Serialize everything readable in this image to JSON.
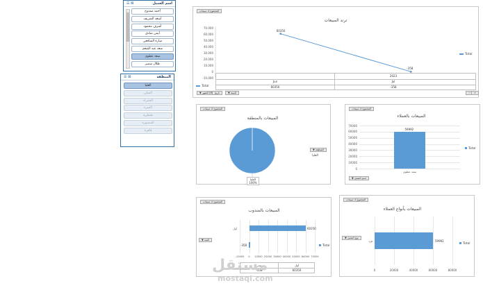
{
  "customer_slicer": {
    "title": "اسم العميل",
    "items": [
      {
        "label": "أحمد ممدوح",
        "selected": false
      },
      {
        "label": "أسعد الشريف",
        "selected": false
      },
      {
        "label": "أشرف محمود",
        "selected": false
      },
      {
        "label": "أيمن صادق",
        "selected": false
      },
      {
        "label": "سارة الشافعي",
        "selected": false
      },
      {
        "label": "سعد عبد المنعم",
        "selected": false
      },
      {
        "label": "سعد عطوى",
        "selected": true
      },
      {
        "label": "طلال سمير",
        "selected": false
      }
    ]
  },
  "region_slicer": {
    "title": "المنطقة",
    "items": [
      {
        "label": "العليا",
        "selected": true
      },
      {
        "label": "السلي",
        "selected": false
      },
      {
        "label": "الحمراء",
        "selected": false
      },
      {
        "label": "الجيزه",
        "selected": false
      },
      {
        "label": "طنطرية",
        "selected": false
      },
      {
        "label": "المنصورة",
        "selected": false
      },
      {
        "label": "قاهرة",
        "selected": false
      }
    ]
  },
  "charts": {
    "trend": {
      "sum_button": "المجموع ك مبيعات",
      "title": "ترند المبيعات",
      "legend": "Total",
      "year_button": "السنة",
      "month_button": "الشهر (Month)",
      "filter_button": "تاريخ",
      "table": {
        "years": [
          "",
          "2023"
        ],
        "months": [
          "Jun",
          "Jul"
        ],
        "legend_label": "Total",
        "values": [
          "60350",
          "-358"
        ]
      }
    },
    "customers": {
      "sum_button": "المجموع ك مبيعات",
      "title": "المبيعات بالعملاء",
      "legend": "Total",
      "axis_button": "اسم العميل"
    },
    "region": {
      "sum_button": "المجموع ك مبيعات",
      "title": "المبيعات بالمنطقة",
      "legend_button": "المنطقة",
      "legend_item": "العليا",
      "slice_label": "العليا",
      "slice_percent": "100%"
    },
    "rep": {
      "sum_button": "المجموع ك مبيعات",
      "title": "المبيعات بالمندوب",
      "legend": "Total",
      "axis_button": "المند",
      "table": {
        "header": [
          "",
          "بندر",
          "أول"
        ],
        "row_label": "Total",
        "values": [
          "-358",
          "60350"
        ]
      }
    },
    "type": {
      "sum_button": "المجموع ك مبيعات",
      "title": "المبيعات بأنواع العملاء",
      "legend": "Total",
      "axis_button": "نوع العميل"
    }
  },
  "watermark": {
    "arabic": "مستقل",
    "latin": "mostaql.com"
  },
  "chart_data": [
    {
      "type": "line",
      "title": "ترند المبيعات",
      "categories": [
        "Jun",
        "Jul"
      ],
      "series": [
        {
          "name": "Total",
          "values": [
            60350,
            -358
          ]
        }
      ],
      "ylim": [
        -10000,
        70000
      ],
      "yticks": [
        -10000,
        0,
        10000,
        20000,
        30000,
        40000,
        50000,
        60000,
        70000
      ],
      "ytick_labels": [
        "-10.000",
        "0",
        "10.000",
        "20.000",
        "30.000",
        "40.000",
        "50.000",
        "60.000",
        "70.000"
      ],
      "data_labels": [
        "60350",
        "-358"
      ],
      "grid": false,
      "legend": "right"
    },
    {
      "type": "bar",
      "title": "المبيعات بالعملاء",
      "categories": [
        "سعد عطوى"
      ],
      "series": [
        {
          "name": "Total",
          "values": [
            59992
          ]
        }
      ],
      "ylim": [
        0,
        70000
      ],
      "yticks": [
        0,
        10000,
        20000,
        30000,
        40000,
        50000,
        60000,
        70000
      ],
      "data_labels": [
        "59992"
      ],
      "grid": true,
      "legend": "right"
    },
    {
      "type": "pie",
      "title": "المبيعات بالمنطقة",
      "categories": [
        "العليا"
      ],
      "values": [
        100
      ],
      "data_labels": [
        "100%"
      ],
      "legend": "right"
    },
    {
      "type": "bar",
      "orientation": "horizontal",
      "title": "المبيعات بالمندوب",
      "categories": [
        "بندر",
        "أول"
      ],
      "series": [
        {
          "name": "Total",
          "values": [
            -358,
            60350
          ]
        }
      ],
      "xlim": [
        -10000,
        70000
      ],
      "xticks": [
        -10000,
        0,
        10000,
        20000,
        30000,
        40000,
        50000,
        60000,
        70000
      ],
      "xtick_labels": [
        "-10000",
        "0",
        "10000",
        "20000",
        "30000",
        "40000",
        "50000",
        "60000",
        "70000"
      ],
      "data_labels": [
        "-358",
        "60350"
      ],
      "grid": true,
      "legend": "right"
    },
    {
      "type": "bar",
      "orientation": "horizontal",
      "title": "المبيعات بأنواع العملاء",
      "categories": [
        "فرد"
      ],
      "series": [
        {
          "name": "Total",
          "values": [
            59992
          ]
        }
      ],
      "xlim": [
        0,
        80000
      ],
      "xticks": [
        0,
        20000,
        40000,
        60000,
        80000
      ],
      "data_labels": [
        "59992"
      ],
      "grid": true,
      "legend": "right"
    }
  ]
}
